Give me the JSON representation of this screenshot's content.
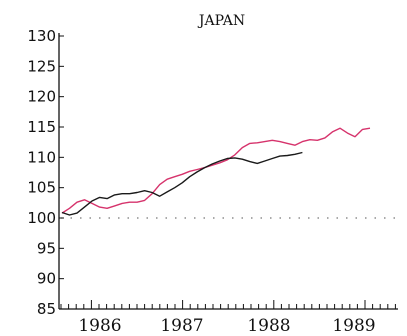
{
  "chart_data": {
    "type": "line",
    "title": "JAPAN",
    "xlabel": "",
    "ylabel": "",
    "ylim": [
      85,
      130
    ],
    "yticks": [
      85,
      90,
      95,
      100,
      105,
      110,
      115,
      120,
      125,
      130
    ],
    "ytick_labels": [
      "85",
      "90",
      "95",
      "100",
      "105",
      "110",
      "115",
      "120",
      "125",
      "130"
    ],
    "xlim": [
      0,
      44
    ],
    "year_labels": [
      "1986",
      "1987",
      "1988",
      "1989"
    ],
    "reference_line": 100,
    "series": [
      {
        "color": "#d6336c",
        "x": [
          0,
          1,
          2,
          3,
          4,
          5,
          6,
          7,
          8,
          9,
          10,
          11,
          12,
          13,
          14,
          15,
          16,
          17,
          18,
          19,
          20,
          21,
          22,
          23,
          24,
          25,
          26,
          27,
          28,
          29,
          30,
          31,
          32,
          33,
          34,
          35,
          36,
          37,
          38,
          39,
          40,
          41
        ],
        "values": [
          100.8,
          101.6,
          102.6,
          103.0,
          102.4,
          101.8,
          101.6,
          102.0,
          102.4,
          102.6,
          102.6,
          102.9,
          104.0,
          105.5,
          106.4,
          106.8,
          107.2,
          107.7,
          108.0,
          108.3,
          108.7,
          109.1,
          109.6,
          110.4,
          111.6,
          112.3,
          112.4,
          112.6,
          112.8,
          112.6,
          112.3,
          112.0,
          112.6,
          112.9,
          112.8,
          113.2,
          114.2,
          114.8,
          114.0,
          113.4,
          114.6,
          114.8
        ]
      },
      {
        "color": "#1a1a1a",
        "x": [
          0,
          1,
          2,
          3,
          4,
          5,
          6,
          7,
          8,
          9,
          10,
          11,
          12,
          13,
          14,
          15,
          16,
          17,
          18,
          19,
          20,
          21,
          22,
          23,
          24,
          25,
          26,
          27,
          28,
          29,
          30,
          31,
          32
        ],
        "values": [
          100.9,
          100.5,
          100.8,
          101.8,
          102.8,
          103.4,
          103.2,
          103.8,
          104.0,
          104.0,
          104.2,
          104.5,
          104.2,
          103.6,
          104.3,
          105.0,
          105.8,
          106.8,
          107.6,
          108.3,
          108.9,
          109.4,
          109.8,
          109.9,
          109.7,
          109.3,
          109.0,
          109.4,
          109.8,
          110.2,
          110.3,
          110.5,
          110.8
        ]
      }
    ]
  }
}
